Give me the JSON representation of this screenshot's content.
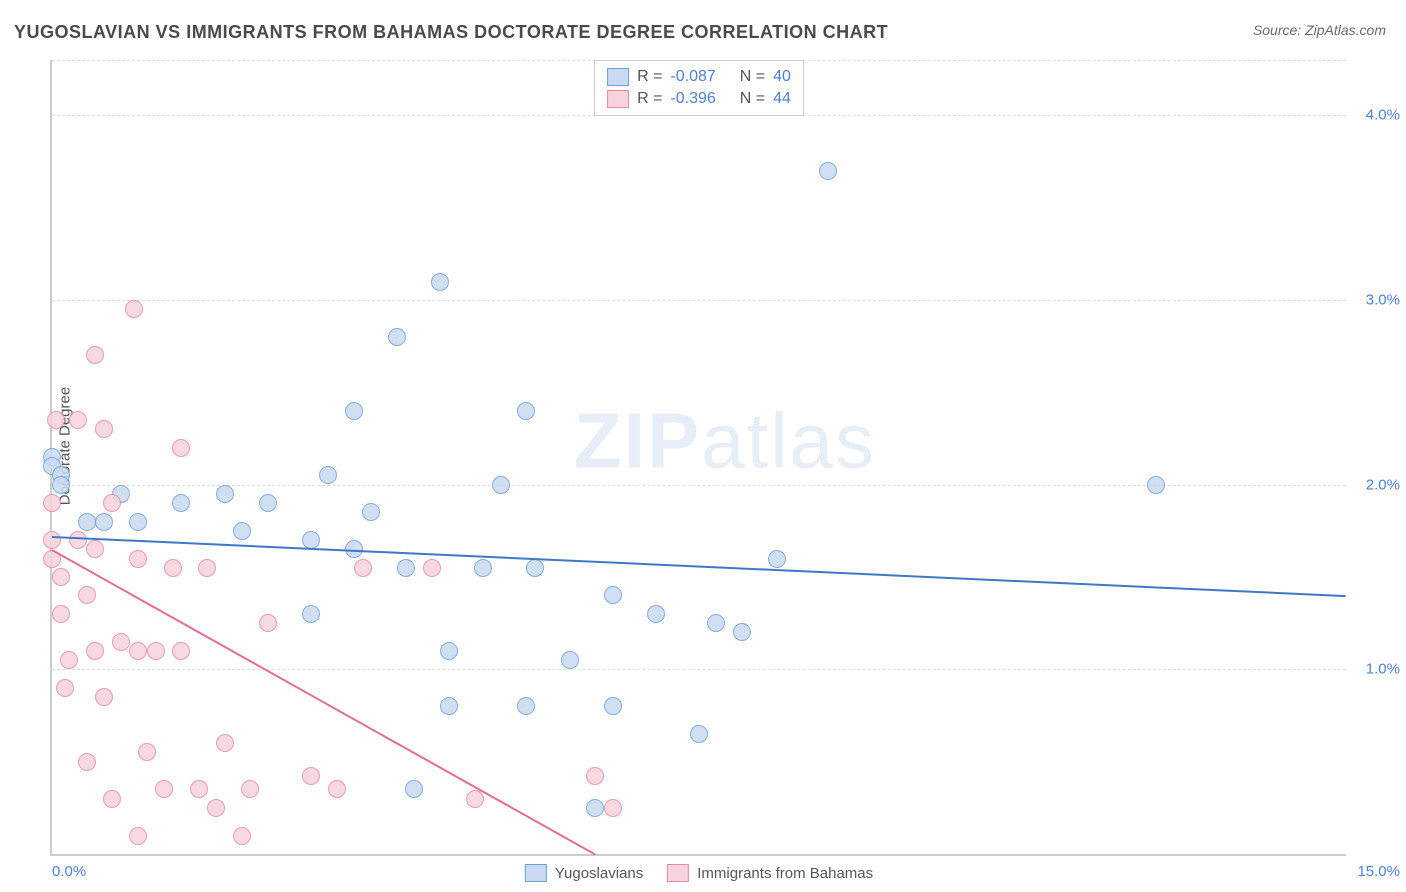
{
  "title": "YUGOSLAVIAN VS IMMIGRANTS FROM BAHAMAS DOCTORATE DEGREE CORRELATION CHART",
  "source_label": "Source: ZipAtlas.com",
  "ylabel": "Doctorate Degree",
  "watermark_a": "ZIP",
  "watermark_b": "atlas",
  "chart": {
    "type": "scatter",
    "xlim": [
      0,
      15
    ],
    "ylim": [
      0,
      4.3
    ],
    "background_color": "#ffffff",
    "grid_color": "#dddddd",
    "grid_dash": true,
    "axis_color": "#cccccc",
    "tick_color": "#4f7fd6",
    "tick_fontsize": 15,
    "yticks": [
      {
        "v": 1.0,
        "label": "1.0%"
      },
      {
        "v": 2.0,
        "label": "2.0%"
      },
      {
        "v": 3.0,
        "label": "3.0%"
      },
      {
        "v": 4.0,
        "label": "4.0%"
      }
    ],
    "xticks": [
      {
        "v": 0.0,
        "label": "0.0%",
        "align": "left"
      },
      {
        "v": 15.0,
        "label": "15.0%",
        "align": "right"
      }
    ],
    "marker_size": 18,
    "marker_opacity": 0.85
  },
  "series": [
    {
      "name": "Yugoslavians",
      "fill": "#c9daf2",
      "stroke": "#6f9fd8",
      "trend_color": "#3e78c7",
      "trend_width": 2,
      "R_label": "R =",
      "R": "-0.087",
      "N_label": "N =",
      "N": "40",
      "trend": {
        "x1": 0,
        "y1": 1.72,
        "x2": 15,
        "y2": 1.4
      },
      "points": [
        [
          0.0,
          2.15
        ],
        [
          0.0,
          2.1
        ],
        [
          0.1,
          2.05
        ],
        [
          0.1,
          2.0
        ],
        [
          0.4,
          1.8
        ],
        [
          0.6,
          1.8
        ],
        [
          1.0,
          1.8
        ],
        [
          1.5,
          1.9
        ],
        [
          2.0,
          1.95
        ],
        [
          2.2,
          1.75
        ],
        [
          2.5,
          1.9
        ],
        [
          3.0,
          1.7
        ],
        [
          3.0,
          1.3
        ],
        [
          3.2,
          2.05
        ],
        [
          3.5,
          2.4
        ],
        [
          3.5,
          1.65
        ],
        [
          3.7,
          1.85
        ],
        [
          4.0,
          2.8
        ],
        [
          4.1,
          1.55
        ],
        [
          4.2,
          0.35
        ],
        [
          4.5,
          3.1
        ],
        [
          4.6,
          1.1
        ],
        [
          4.6,
          0.8
        ],
        [
          5.0,
          1.55
        ],
        [
          5.2,
          2.0
        ],
        [
          5.5,
          2.4
        ],
        [
          5.5,
          0.8
        ],
        [
          5.6,
          1.55
        ],
        [
          6.0,
          1.05
        ],
        [
          6.3,
          0.25
        ],
        [
          6.5,
          1.4
        ],
        [
          6.5,
          0.8
        ],
        [
          7.0,
          1.3
        ],
        [
          7.5,
          0.65
        ],
        [
          7.7,
          1.25
        ],
        [
          8.0,
          1.2
        ],
        [
          8.4,
          1.6
        ],
        [
          9.0,
          3.7
        ],
        [
          12.8,
          2.0
        ],
        [
          0.8,
          1.95
        ]
      ]
    },
    {
      "name": "Immigrants from Bahamas",
      "fill": "#f7d3dc",
      "stroke": "#e58aa3",
      "trend_color": "#e36f90",
      "trend_width": 2,
      "R_label": "R =",
      "R": "-0.396",
      "N_label": "N =",
      "N": "44",
      "trend": {
        "x1": 0,
        "y1": 1.65,
        "x2": 6.3,
        "y2": 0.0
      },
      "points": [
        [
          0.0,
          1.7
        ],
        [
          0.0,
          1.6
        ],
        [
          0.0,
          1.9
        ],
        [
          0.05,
          2.35
        ],
        [
          0.1,
          1.3
        ],
        [
          0.1,
          1.5
        ],
        [
          0.15,
          0.9
        ],
        [
          0.2,
          1.05
        ],
        [
          0.3,
          2.35
        ],
        [
          0.3,
          1.7
        ],
        [
          0.4,
          1.4
        ],
        [
          0.4,
          0.5
        ],
        [
          0.5,
          2.7
        ],
        [
          0.5,
          1.65
        ],
        [
          0.5,
          1.1
        ],
        [
          0.6,
          2.3
        ],
        [
          0.6,
          0.85
        ],
        [
          0.7,
          1.9
        ],
        [
          0.7,
          0.3
        ],
        [
          0.8,
          1.15
        ],
        [
          0.95,
          2.95
        ],
        [
          1.0,
          1.6
        ],
        [
          1.0,
          1.1
        ],
        [
          1.0,
          0.1
        ],
        [
          1.1,
          0.55
        ],
        [
          1.2,
          1.1
        ],
        [
          1.3,
          0.35
        ],
        [
          1.4,
          1.55
        ],
        [
          1.5,
          2.2
        ],
        [
          1.5,
          1.1
        ],
        [
          1.7,
          0.35
        ],
        [
          1.8,
          1.55
        ],
        [
          1.9,
          0.25
        ],
        [
          2.0,
          0.6
        ],
        [
          2.2,
          0.1
        ],
        [
          2.3,
          0.35
        ],
        [
          2.5,
          1.25
        ],
        [
          3.0,
          0.42
        ],
        [
          3.3,
          0.35
        ],
        [
          3.6,
          1.55
        ],
        [
          4.4,
          1.55
        ],
        [
          4.9,
          0.3
        ],
        [
          6.3,
          0.42
        ],
        [
          6.5,
          0.25
        ]
      ]
    }
  ],
  "legend_bottom": [
    {
      "series": 0
    },
    {
      "series": 1
    }
  ]
}
